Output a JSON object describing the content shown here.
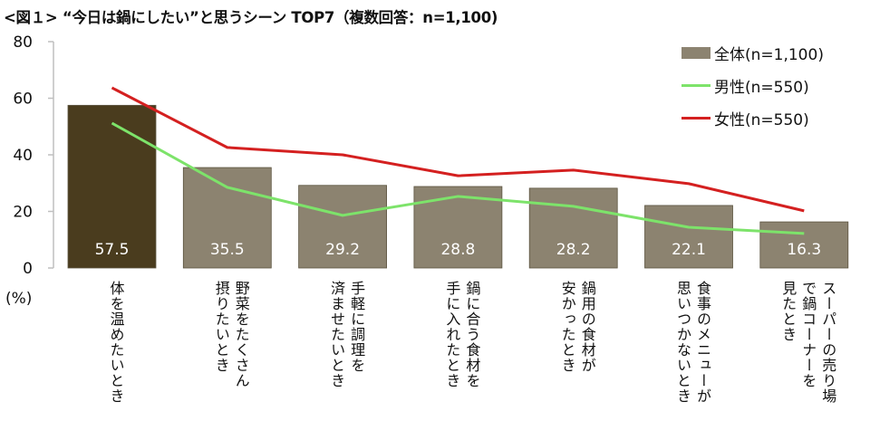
{
  "title": "<図１> “今日は鍋にしたい”と思うシーン TOP7（複数回答：n=1,100)",
  "y_unit": "(%)",
  "colors": {
    "bar_highlight": "#4a3c1e",
    "bar_default": "#8c8370",
    "male_line": "#7de36a",
    "female_line": "#d42020",
    "axis": "#bfbfbf"
  },
  "legend": {
    "items": [
      {
        "label": "全体(n=1,100)",
        "type": "bar"
      },
      {
        "label": "男性(n=550)",
        "type": "line"
      },
      {
        "label": "女性(n=550)",
        "type": "line"
      }
    ]
  },
  "categories_display": [
    "体を温めたいとき",
    "摂りたいとき\n野菜をたくさん",
    "済ませたいとき\n手軽に調理を",
    "手に入れたとき\n鍋に合う食材を",
    "安かったとき\n鍋用の食材が",
    "思いつかないとき\n食事のメニューが",
    "見たとき\nで鍋コーナーを\nスーパーの売り場"
  ],
  "chart_data": {
    "type": "bar",
    "title": "<図１> “今日は鍋にしたい”と思うシーン TOP7（複数回答：n=1,100)",
    "xlabel": "",
    "ylabel": "(%)",
    "ylim": [
      0,
      80
    ],
    "yticks": [
      0,
      20,
      40,
      60,
      80
    ],
    "grid": false,
    "legend_position": "top-right",
    "categories": [
      "体を温めたいとき",
      "野菜をたくさん摂りたいとき",
      "手軽に調理を済ませたいとき",
      "鍋に合う食材を手に入れたとき",
      "鍋用の食材が安かったとき",
      "食事のメニューが思いつかないとき",
      "スーパーの売り場で鍋コーナーを見たとき"
    ],
    "series": [
      {
        "name": "全体(n=1,100)",
        "type": "bar",
        "values": [
          57.5,
          35.5,
          29.2,
          28.8,
          28.2,
          22.1,
          16.3
        ],
        "data_labels": [
          "57.5",
          "35.5",
          "29.2",
          "28.8",
          "28.2",
          "22.1",
          "16.3"
        ]
      },
      {
        "name": "男性(n=550)",
        "type": "line",
        "values": [
          51.2,
          28.5,
          18.6,
          25.3,
          21.8,
          14.4,
          12.2
        ]
      },
      {
        "name": "女性(n=550)",
        "type": "line",
        "values": [
          63.7,
          42.6,
          40.0,
          32.6,
          34.6,
          29.8,
          20.2
        ]
      }
    ]
  }
}
